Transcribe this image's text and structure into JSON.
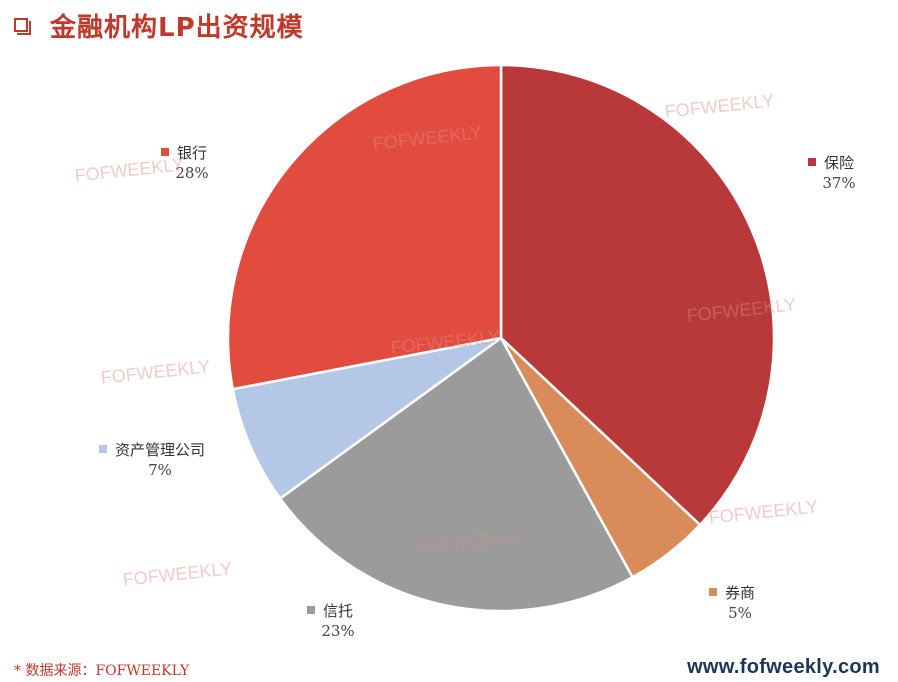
{
  "header": {
    "title": "金融机构LP出资规模"
  },
  "watermark": {
    "text": "FOFWEEKLY"
  },
  "footer": {
    "note": "* 数据来源：FOFWEEKLY",
    "url": "www.fofweekly.com"
  },
  "colors": {
    "accent": "#c0392b"
  },
  "chart_data": {
    "type": "pie",
    "title": "",
    "start_angle_deg": 0,
    "direction": "clockwise",
    "slices": [
      {
        "name": "保险",
        "value": 37,
        "label": "37%",
        "color": "#b9393b"
      },
      {
        "name": "券商",
        "value": 5,
        "label": "5%",
        "color": "#d98c5a"
      },
      {
        "name": "信托",
        "value": 23,
        "label": "23%",
        "color": "#9b9b9b"
      },
      {
        "name": "资产管理公司",
        "value": 7,
        "label": "7%",
        "color": "#b4c7e7"
      },
      {
        "name": "银行",
        "value": 28,
        "label": "28%",
        "color": "#e24c3f"
      }
    ]
  }
}
